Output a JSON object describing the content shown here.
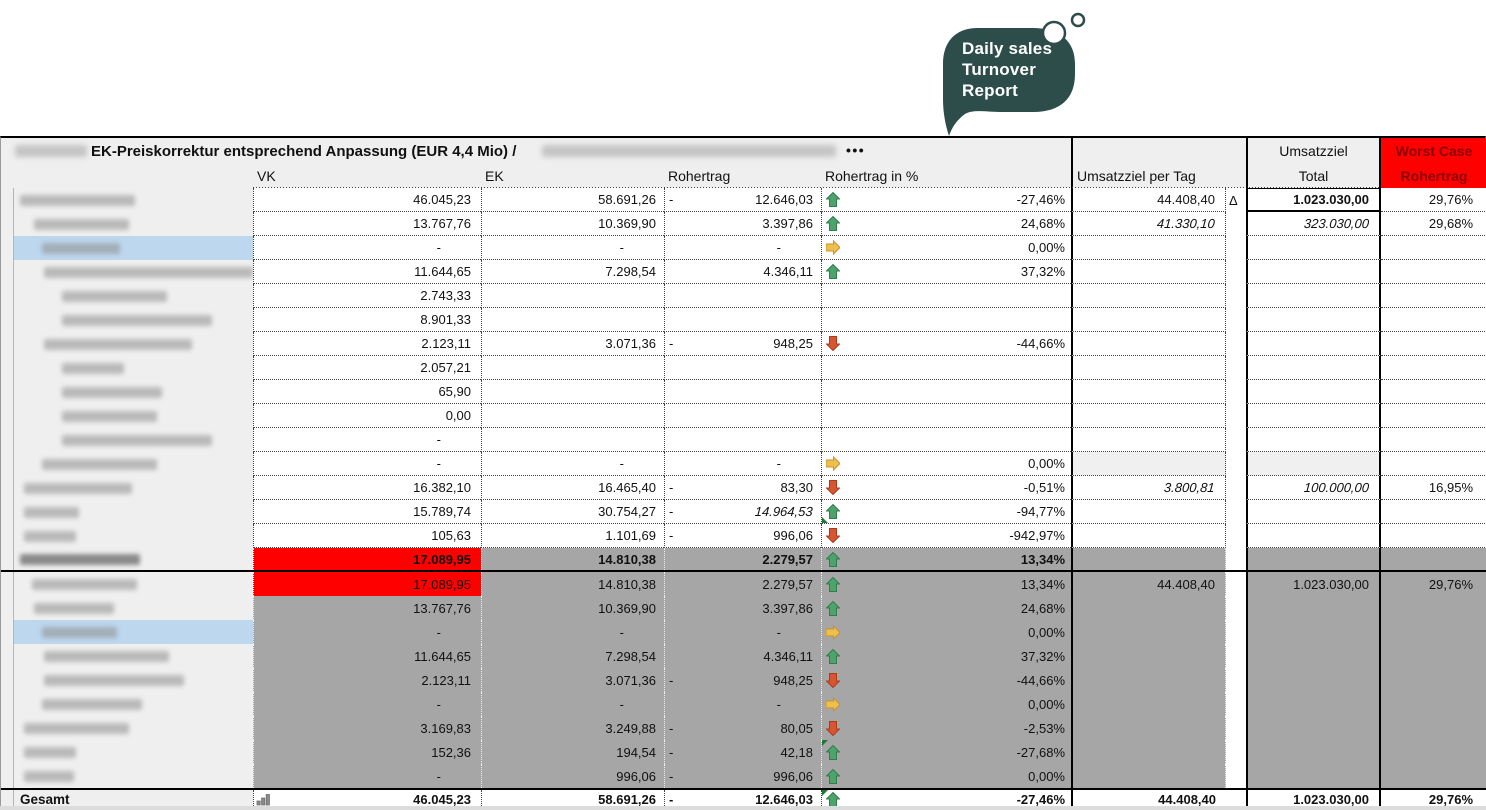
{
  "bubble": {
    "line1": "Daily sales",
    "line2": "Turnover",
    "line3": "Report"
  },
  "header": {
    "title": "EK-Preiskorrektur entsprechend Anpassung (EUR 4,4 Mio) /",
    "dots": "•••"
  },
  "columns": {
    "vk": "VK",
    "ek": "EK",
    "rohertrag": "Rohertrag",
    "rohertrag_pct": "Rohertrag in %",
    "umsatzziel_per_tag": "Umsatzziel per Tag",
    "umsatzziel_total_line1": "Umsatzziel",
    "umsatzziel_total_line2": "Total",
    "worst_case_line1": "Worst Case",
    "worst_case_line2": "Rohertrag"
  },
  "delta_symbol": "Δ",
  "colors": {
    "red": "#ff0000",
    "gray": "#a6a6a6",
    "panel": "#efefef",
    "blue": "#bdd7ee",
    "bubble": "#2d4d4b",
    "worst_text": "#8b0000",
    "up": "#4ea36b",
    "up_stroke": "#2f7d4c",
    "down": "#d65532",
    "down_stroke": "#b03a16",
    "right": "#edbf4e",
    "right_stroke": "#c8922e"
  },
  "rows_main": [
    {
      "pad": 6,
      "bw": 115,
      "vk": "46.045,23",
      "ek": "58.691,26",
      "neg": true,
      "roh": "12.646,03",
      "arrow": "up",
      "pct": "-27,46%",
      "upt": "44.408,40",
      "delta": "Δ",
      "total": "1.023.030,00",
      "total_box": true,
      "worst": "29,76%"
    },
    {
      "pad": 20,
      "bw": 95,
      "vk": "13.767,76",
      "ek": "10.369,90",
      "roh": "3.397,86",
      "arrow": "up",
      "pct": "24,68%",
      "upt": "41.330,10",
      "upt_italic": true,
      "total": "323.030,00",
      "total_italic": true,
      "worst": "29,68%"
    },
    {
      "pad": 28,
      "bw": 78,
      "hl": true,
      "vk": "-",
      "ek": "-",
      "roh": "-",
      "arrow": "right",
      "pct": "0,00%"
    },
    {
      "pad": 30,
      "bw": 215,
      "vk": "11.644,65",
      "ek": "7.298,54",
      "roh": "4.346,11",
      "arrow": "up",
      "pct": "37,32%"
    },
    {
      "pad": 48,
      "bw": 105,
      "vk": "2.743,33"
    },
    {
      "pad": 48,
      "bw": 150,
      "vk": "8.901,33"
    },
    {
      "pad": 30,
      "bw": 148,
      "vk": "2.123,11",
      "ek": "3.071,36",
      "neg": true,
      "roh": "948,25",
      "arrow": "down",
      "pct": "-44,66%"
    },
    {
      "pad": 48,
      "bw": 62,
      "vk": "2.057,21"
    },
    {
      "pad": 48,
      "bw": 100,
      "vk": "65,90"
    },
    {
      "pad": 48,
      "bw": 95,
      "vk": "0,00"
    },
    {
      "pad": 48,
      "bw": 150,
      "vk": "-"
    },
    {
      "pad": 28,
      "bw": 115,
      "vk": "-",
      "ek": "-",
      "roh": "-",
      "arrow": "right",
      "pct": "0,00%",
      "hatch": true
    },
    {
      "pad": 10,
      "bw": 108,
      "vk": "16.382,10",
      "ek": "16.465,40",
      "neg": true,
      "roh": "83,30",
      "arrow": "down",
      "pct": "-0,51%",
      "upt": "3.800,81",
      "upt_italic": true,
      "total": "100.000,00",
      "total_italic": true,
      "worst": "16,95%"
    },
    {
      "pad": 10,
      "bw": 55,
      "vk": "15.789,74",
      "ek": "30.754,27",
      "neg": true,
      "roh": "14.964,53",
      "roh_italic": true,
      "arrow": "up",
      "corner": "bl",
      "pct": "-94,77%"
    },
    {
      "pad": 10,
      "bw": 52,
      "vk": "105,63",
      "ek": "1.101,69",
      "neg": true,
      "roh": "996,06",
      "arrow": "down",
      "pct": "-942,97%"
    }
  ],
  "row_sep": {
    "pad": 6,
    "bw": 120,
    "bold": true,
    "vk": "17.089,95",
    "vk_red": true,
    "ek": "14.810,38",
    "roh": "2.279,57",
    "arrow": "up",
    "pct": "13,34%"
  },
  "rows_gray": [
    {
      "pad": 18,
      "bw": 105,
      "vk": "17.089,95",
      "vk_red": true,
      "ek": "14.810,38",
      "roh": "2.279,57",
      "arrow": "up",
      "pct": "13,34%",
      "upt": "44.408,40",
      "total": "1.023.030,00",
      "worst": "29,76%"
    },
    {
      "pad": 20,
      "bw": 80,
      "vk": "13.767,76",
      "ek": "10.369,90",
      "roh": "3.397,86",
      "arrow": "up",
      "pct": "24,68%"
    },
    {
      "pad": 28,
      "bw": 75,
      "hl": true,
      "vk": "-",
      "ek": "-",
      "roh": "-",
      "arrow": "right",
      "pct": "0,00%"
    },
    {
      "pad": 30,
      "bw": 125,
      "vk": "11.644,65",
      "ek": "7.298,54",
      "roh": "4.346,11",
      "arrow": "up",
      "pct": "37,32%"
    },
    {
      "pad": 30,
      "bw": 140,
      "vk": "2.123,11",
      "ek": "3.071,36",
      "neg": true,
      "roh": "948,25",
      "arrow": "down",
      "pct": "-44,66%"
    },
    {
      "pad": 28,
      "bw": 100,
      "vk": "-",
      "ek": "-",
      "roh": "-",
      "arrow": "right",
      "pct": "0,00%"
    },
    {
      "pad": 10,
      "bw": 105,
      "vk": "3.169,83",
      "ek": "3.249,88",
      "neg": true,
      "roh": "80,05",
      "arrow": "down",
      "pct": "-2,53%"
    },
    {
      "pad": 10,
      "bw": 52,
      "vk": "152,36",
      "ek": "194,54",
      "neg": true,
      "roh": "42,18",
      "arrow": "up",
      "corner": "tl",
      "pct": "-27,68%"
    },
    {
      "pad": 10,
      "bw": 50,
      "vk": "-",
      "ek": "996,06",
      "neg": true,
      "roh": "996,06",
      "arrow": "up",
      "pct": "0,00%"
    }
  ],
  "row_gesamt": {
    "label": "Gesamt",
    "vk": "46.045,23",
    "ek": "58.691,26",
    "neg": true,
    "roh": "12.646,03",
    "arrow": "up",
    "corner": "tl",
    "pct": "-27,46%",
    "upt": "44.408,40",
    "total": "1.023.030,00",
    "worst": "29,76%"
  }
}
